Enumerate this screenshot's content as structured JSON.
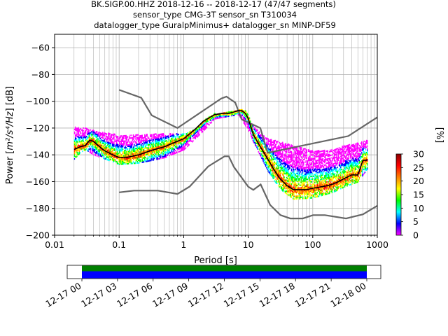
{
  "title_lines": [
    "BK.SIGP.00.HHZ   2018-12-16 -- 2018-12-17  (47/47 segments)",
    "sensor_type CMG-3T sensor_sn T310034",
    "datalogger_type GuralpMinimus+ datalogger_sn MINP-DF59"
  ],
  "chart_data": {
    "type": "heatmap",
    "xlabel": "Period [s]",
    "ylabel_prefix": "Power [",
    "ylabel_unit": "m²/s⁴/Hz",
    "ylabel_suffix": "] [dB]",
    "x_scale": "log",
    "xlim": [
      0.01,
      1000
    ],
    "ylim": [
      -200,
      -50
    ],
    "x_ticks": [
      0.01,
      0.1,
      1,
      10,
      100,
      1000
    ],
    "x_tick_labels": [
      "0.01",
      "0.1",
      "1",
      "10",
      "100",
      "1000"
    ],
    "y_ticks": [
      -200,
      -180,
      -160,
      -140,
      -120,
      -100,
      -80,
      -60
    ],
    "y_tick_labels": [
      "−200",
      "−180",
      "−160",
      "−140",
      "−120",
      "−100",
      "−80",
      "−60"
    ],
    "grid": true,
    "colorbar": {
      "label": "[%]",
      "range": [
        0,
        30
      ],
      "ticks": [
        0,
        5,
        10,
        15,
        20,
        25,
        30
      ],
      "colors": [
        "#ff00ff",
        "#0000ff",
        "#00ffff",
        "#00ff00",
        "#ffff00",
        "#ff8000",
        "#ff0000",
        "#8b0000"
      ]
    },
    "noise_models": [
      {
        "periods": [
          0.1,
          0.22,
          0.32,
          0.8,
          3.8,
          4.6,
          6.3,
          7.9,
          15.4,
          20,
          354.8,
          1000
        ],
        "db": [
          -91.5,
          -97.4,
          -110.5,
          -120,
          -98,
          -96.5,
          -101,
          -113.5,
          -120,
          -138.5,
          -126,
          -112
        ]
      },
      {
        "periods": [
          0.1,
          0.17,
          0.4,
          0.8,
          1.24,
          2.4,
          4.3,
          5,
          6,
          10,
          12,
          15.6,
          21.9,
          31.6,
          45,
          70,
          101,
          154,
          328,
          600,
          1000
        ],
        "db": [
          -168,
          -166.7,
          -166.7,
          -169.2,
          -163.7,
          -148.6,
          -141.1,
          -141.1,
          -149,
          -163.8,
          -166.2,
          -162.1,
          -177.5,
          -185,
          -187.5,
          -187.5,
          -185,
          -185,
          -187.5,
          -184.4,
          -178
        ]
      }
    ],
    "mode_line": {
      "periods": [
        0.02,
        0.025,
        0.03,
        0.035,
        0.04,
        0.05,
        0.06,
        0.08,
        0.1,
        0.13,
        0.2,
        0.3,
        0.5,
        0.7,
        1,
        1.5,
        2,
        3,
        4,
        5,
        6,
        7,
        8,
        9,
        10,
        12,
        15,
        20,
        25,
        30,
        40,
        50,
        60,
        80,
        100,
        130,
        170,
        200,
        250,
        300,
        400,
        500,
        600,
        700
      ],
      "db": [
        -136,
        -134,
        -133,
        -129,
        -130,
        -134,
        -137,
        -140,
        -142,
        -142,
        -140,
        -137,
        -134,
        -131,
        -128,
        -121,
        -115,
        -110,
        -109,
        -109,
        -108,
        -107,
        -107,
        -109,
        -113,
        -125,
        -133,
        -143,
        -151,
        -157,
        -163,
        -166,
        -166,
        -166,
        -165,
        -164,
        -163,
        -162,
        -160,
        -158,
        -155,
        -155,
        -144,
        -144
      ]
    },
    "psd_band_traces": [
      {
        "name": "upper",
        "periods": [
          0.02,
          0.03,
          0.05,
          0.1,
          0.2,
          0.5,
          1,
          2,
          3,
          5,
          7,
          9,
          10,
          12,
          15,
          20,
          30,
          50,
          100,
          200,
          300,
          500,
          700
        ],
        "db": [
          -119,
          -120,
          -123,
          -125,
          -125,
          -124,
          -124,
          -118,
          -112,
          -108,
          -106,
          -107,
          -111,
          -118,
          -123,
          -128,
          -130,
          -133,
          -137,
          -136,
          -133,
          -131,
          -129
        ]
      },
      {
        "name": "lower",
        "periods": [
          0.02,
          0.025,
          0.03,
          0.04,
          0.06,
          0.1,
          0.2,
          0.5,
          1,
          2,
          3,
          5,
          7,
          10,
          12,
          15,
          20,
          30,
          50,
          100,
          200,
          300,
          500,
          700
        ],
        "db": [
          -143,
          -138,
          -136,
          -140,
          -143,
          -147,
          -146,
          -142,
          -136,
          -122,
          -113,
          -111,
          -110,
          -122,
          -131,
          -140,
          -152,
          -165,
          -173,
          -172,
          -168,
          -164,
          -160,
          -150
        ]
      }
    ],
    "availability": {
      "x_ticks": [
        "12-17 00",
        "12-17 03",
        "12-17 06",
        "12-17 09",
        "12-17 12",
        "12-17 15",
        "12-17 18",
        "12-17 21",
        "12-18 00"
      ],
      "bar_top_color": "#008000",
      "bar_bottom_color": "#0000ff",
      "coverage_fraction": 1.0
    }
  }
}
